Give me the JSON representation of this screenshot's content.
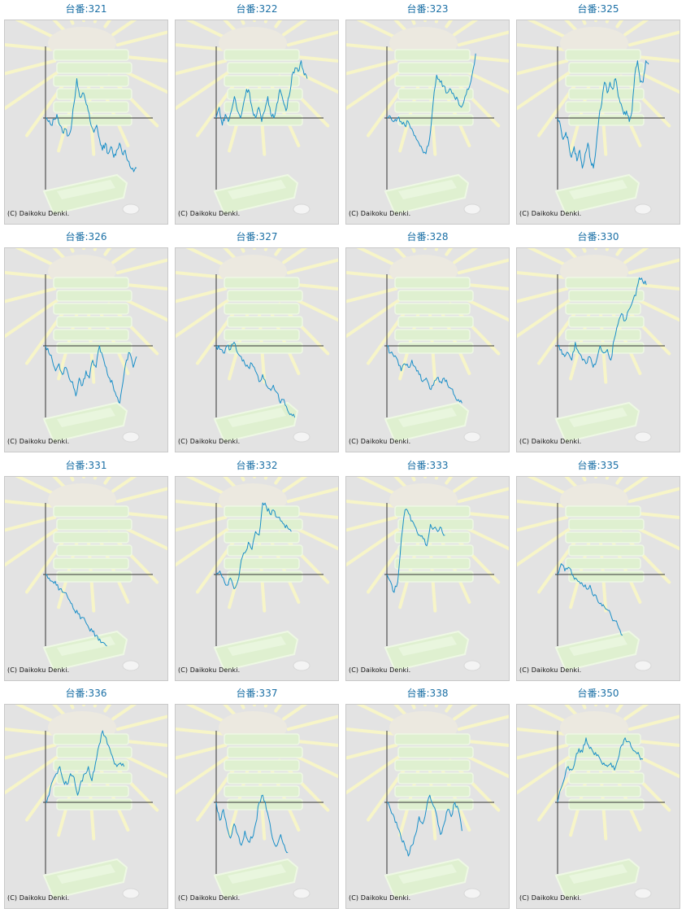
{
  "colors": {
    "title": "#1a6fa5",
    "line": "#1a8fc8",
    "axis": "#333333",
    "panel_bg": "#e3e3e3",
    "decoration": "#e6f2d8"
  },
  "decoration_icon": "pachinko-ball-tray-with-sunburst",
  "copyright": "(C) Daikoku Denki.",
  "chart_data": [
    {
      "type": "line",
      "title": "台番:321",
      "grid": false,
      "zero_line": true,
      "ylim": [
        -1,
        1
      ],
      "values": [
        0.0,
        -0.05,
        -0.1,
        -0.02,
        0.05,
        -0.1,
        -0.2,
        -0.15,
        -0.25,
        -0.15,
        0.2,
        0.55,
        0.3,
        0.35,
        0.25,
        0.1,
        -0.1,
        -0.2,
        -0.1,
        -0.3,
        -0.45,
        -0.35,
        -0.5,
        -0.4,
        -0.55,
        -0.45,
        -0.35,
        -0.5,
        -0.45,
        -0.6,
        -0.7,
        -0.75,
        -0.7
      ]
    },
    {
      "type": "line",
      "title": "台番:322",
      "grid": false,
      "zero_line": true,
      "ylim": [
        -1,
        1
      ],
      "values": [
        0.0,
        0.15,
        -0.1,
        0.05,
        -0.05,
        0.1,
        0.3,
        0.1,
        0.0,
        0.2,
        0.4,
        0.35,
        0.1,
        0.0,
        0.15,
        -0.05,
        0.1,
        0.3,
        0.05,
        0.0,
        0.2,
        0.4,
        0.25,
        0.1,
        0.3,
        0.6,
        0.7,
        0.65,
        0.8,
        0.6,
        0.55
      ]
    },
    {
      "type": "line",
      "title": "台番:323",
      "grid": false,
      "zero_line": true,
      "ylim": [
        -1,
        1
      ],
      "values": [
        0.0,
        0.02,
        -0.05,
        0.0,
        -0.05,
        -0.1,
        -0.05,
        -0.15,
        -0.25,
        -0.35,
        -0.45,
        -0.5,
        -0.3,
        0.2,
        0.6,
        0.5,
        0.45,
        0.35,
        0.4,
        0.3,
        0.25,
        0.15,
        0.3,
        0.4,
        0.6,
        0.9
      ]
    },
    {
      "type": "line",
      "title": "台番:325",
      "grid": false,
      "zero_line": true,
      "ylim": [
        -1,
        1
      ],
      "values": [
        0.0,
        -0.1,
        -0.3,
        -0.2,
        -0.35,
        -0.55,
        -0.4,
        -0.6,
        -0.45,
        -0.7,
        -0.5,
        -0.35,
        -0.6,
        -0.7,
        -0.4,
        0.0,
        0.2,
        0.5,
        0.35,
        0.5,
        0.4,
        0.55,
        0.3,
        0.2,
        0.05,
        0.1,
        -0.05,
        0.1,
        0.6,
        0.8,
        0.5,
        0.5,
        0.8,
        0.75
      ]
    },
    {
      "type": "line",
      "title": "台番:326",
      "grid": false,
      "zero_line": true,
      "ylim": [
        -1,
        1
      ],
      "values": [
        0.0,
        -0.1,
        -0.2,
        -0.35,
        -0.25,
        -0.4,
        -0.3,
        -0.45,
        -0.5,
        -0.7,
        -0.45,
        -0.55,
        -0.35,
        -0.45,
        -0.2,
        -0.3,
        0.0,
        -0.15,
        -0.3,
        -0.45,
        -0.55,
        -0.7,
        -0.8,
        -0.5,
        -0.2,
        -0.1,
        -0.3,
        -0.15
      ]
    },
    {
      "type": "line",
      "title": "台番:327",
      "grid": false,
      "zero_line": true,
      "ylim": [
        -1,
        1
      ],
      "values": [
        0.0,
        -0.05,
        -0.1,
        0.0,
        -0.05,
        0.05,
        -0.1,
        -0.15,
        -0.25,
        -0.3,
        -0.25,
        -0.35,
        -0.5,
        -0.4,
        -0.55,
        -0.6,
        -0.55,
        -0.65,
        -0.8,
        -0.75,
        -0.9,
        -0.95,
        -1.0
      ]
    },
    {
      "type": "line",
      "title": "台番:328",
      "grid": false,
      "zero_line": true,
      "ylim": [
        -1,
        1
      ],
      "values": [
        0.0,
        -0.1,
        -0.15,
        -0.2,
        -0.35,
        -0.25,
        -0.3,
        -0.2,
        -0.3,
        -0.4,
        -0.5,
        -0.45,
        -0.6,
        -0.55,
        -0.45,
        -0.5,
        -0.45,
        -0.55,
        -0.6,
        -0.7,
        -0.75,
        -0.8
      ]
    },
    {
      "type": "line",
      "title": "台番:330",
      "grid": false,
      "zero_line": true,
      "ylim": [
        -1,
        1
      ],
      "values": [
        0.0,
        -0.05,
        -0.15,
        -0.1,
        -0.2,
        0.05,
        -0.1,
        -0.2,
        -0.25,
        -0.15,
        -0.3,
        -0.2,
        0.0,
        -0.1,
        -0.05,
        -0.2,
        0.1,
        0.3,
        0.45,
        0.35,
        0.5,
        0.6,
        0.7,
        0.95,
        0.9,
        0.85
      ]
    },
    {
      "type": "line",
      "title": "台番:331",
      "grid": false,
      "zero_line": true,
      "ylim": [
        -1,
        1
      ],
      "values": [
        0.0,
        -0.05,
        -0.1,
        -0.15,
        -0.2,
        -0.25,
        -0.3,
        -0.4,
        -0.5,
        -0.55,
        -0.6,
        -0.65,
        -0.75,
        -0.8,
        -0.85,
        -0.9,
        -0.95,
        -1.0
      ]
    },
    {
      "type": "line",
      "title": "台番:332",
      "grid": false,
      "zero_line": true,
      "ylim": [
        -1,
        1
      ],
      "values": [
        0.0,
        0.05,
        -0.05,
        -0.15,
        -0.05,
        -0.2,
        -0.1,
        0.2,
        0.3,
        0.45,
        0.35,
        0.6,
        0.55,
        1.0,
        0.95,
        0.85,
        0.9,
        0.8,
        0.75,
        0.7,
        0.65,
        0.6
      ]
    },
    {
      "type": "line",
      "title": "台番:333",
      "grid": false,
      "zero_line": true,
      "ylim": [
        -1,
        1
      ],
      "values": [
        0.0,
        -0.1,
        -0.25,
        -0.1,
        0.5,
        0.9,
        0.85,
        0.75,
        0.65,
        0.55,
        0.5,
        0.4,
        0.7,
        0.65,
        0.6,
        0.65,
        0.55
      ]
    },
    {
      "type": "line",
      "title": "台番:335",
      "grid": false,
      "zero_line": true,
      "ylim": [
        -1,
        1
      ],
      "values": [
        0.0,
        0.15,
        0.05,
        0.1,
        0.0,
        -0.05,
        -0.1,
        -0.15,
        -0.2,
        -0.15,
        -0.3,
        -0.35,
        -0.4,
        -0.45,
        -0.5,
        -0.6,
        -0.65,
        -0.75,
        -0.85
      ]
    },
    {
      "type": "line",
      "title": "台番:336",
      "grid": false,
      "zero_line": true,
      "ylim": [
        -1,
        1
      ],
      "values": [
        0.0,
        0.1,
        0.3,
        0.4,
        0.5,
        0.3,
        0.25,
        0.4,
        0.35,
        0.1,
        0.3,
        0.4,
        0.5,
        0.3,
        0.55,
        0.8,
        1.0,
        0.9,
        0.75,
        0.6,
        0.5,
        0.55,
        0.5
      ]
    },
    {
      "type": "line",
      "title": "台番:337",
      "grid": false,
      "zero_line": true,
      "ylim": [
        -1,
        1
      ],
      "values": [
        0.0,
        -0.25,
        -0.1,
        -0.35,
        -0.5,
        -0.3,
        -0.45,
        -0.6,
        -0.4,
        -0.55,
        -0.5,
        -0.3,
        0.0,
        0.1,
        -0.1,
        -0.3,
        -0.55,
        -0.6,
        -0.45,
        -0.6,
        -0.7
      ]
    },
    {
      "type": "line",
      "title": "台番:338",
      "grid": false,
      "zero_line": true,
      "ylim": [
        -1,
        1
      ],
      "values": [
        0.0,
        -0.1,
        -0.2,
        -0.35,
        -0.5,
        -0.6,
        -0.75,
        -0.6,
        -0.45,
        -0.2,
        -0.3,
        -0.1,
        0.1,
        -0.05,
        -0.2,
        -0.45,
        -0.3,
        -0.1,
        -0.2,
        0.0,
        -0.1,
        -0.4
      ]
    },
    {
      "type": "line",
      "title": "台番:350",
      "grid": false,
      "zero_line": true,
      "ylim": [
        -1,
        1
      ],
      "values": [
        0.0,
        0.2,
        0.35,
        0.5,
        0.45,
        0.6,
        0.75,
        0.7,
        0.9,
        0.75,
        0.7,
        0.65,
        0.6,
        0.55,
        0.5,
        0.55,
        0.45,
        0.6,
        0.8,
        0.9,
        0.85,
        0.75,
        0.7,
        0.65,
        0.6
      ]
    }
  ]
}
